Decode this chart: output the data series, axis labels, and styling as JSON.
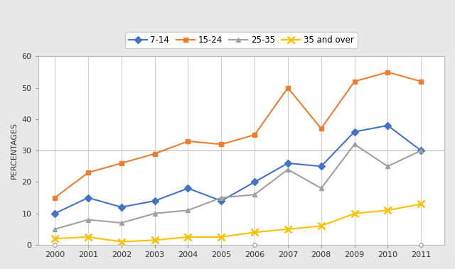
{
  "years": [
    2000,
    2001,
    2002,
    2003,
    2004,
    2005,
    2006,
    2007,
    2008,
    2009,
    2010,
    2011
  ],
  "series": {
    "7-14": [
      10,
      15,
      12,
      14,
      18,
      14,
      20,
      26,
      25,
      36,
      38,
      30
    ],
    "15-24": [
      15,
      23,
      26,
      29,
      33,
      32,
      35,
      50,
      37,
      52,
      55,
      52
    ],
    "25-35": [
      5,
      8,
      7,
      10,
      11,
      15,
      16,
      24,
      18,
      32,
      25,
      30
    ],
    "35 and over": [
      2,
      2.5,
      1,
      1.5,
      2.5,
      2.5,
      4,
      5,
      6,
      10,
      11,
      13
    ]
  },
  "colors": {
    "7-14": "#4472C4",
    "15-24": "#ED7D31",
    "25-35": "#A0A0A0",
    "35 and over": "#FFC000"
  },
  "markers": {
    "7-14": "D",
    "15-24": "s",
    "25-35": "^",
    "35 and over": "x"
  },
  "ylabel": "PERCENTAGES",
  "ylim": [
    0,
    60
  ],
  "yticks": [
    0,
    10,
    20,
    30,
    40,
    50,
    60
  ],
  "bg_color": "#ffffff",
  "outer_bg": "#e8e8e8",
  "grid_color": "#d0d0d0",
  "legend_order": [
    "7-14",
    "15-24",
    "25-35",
    "35 and over"
  ],
  "marker_size": 5,
  "linewidth": 1.5
}
